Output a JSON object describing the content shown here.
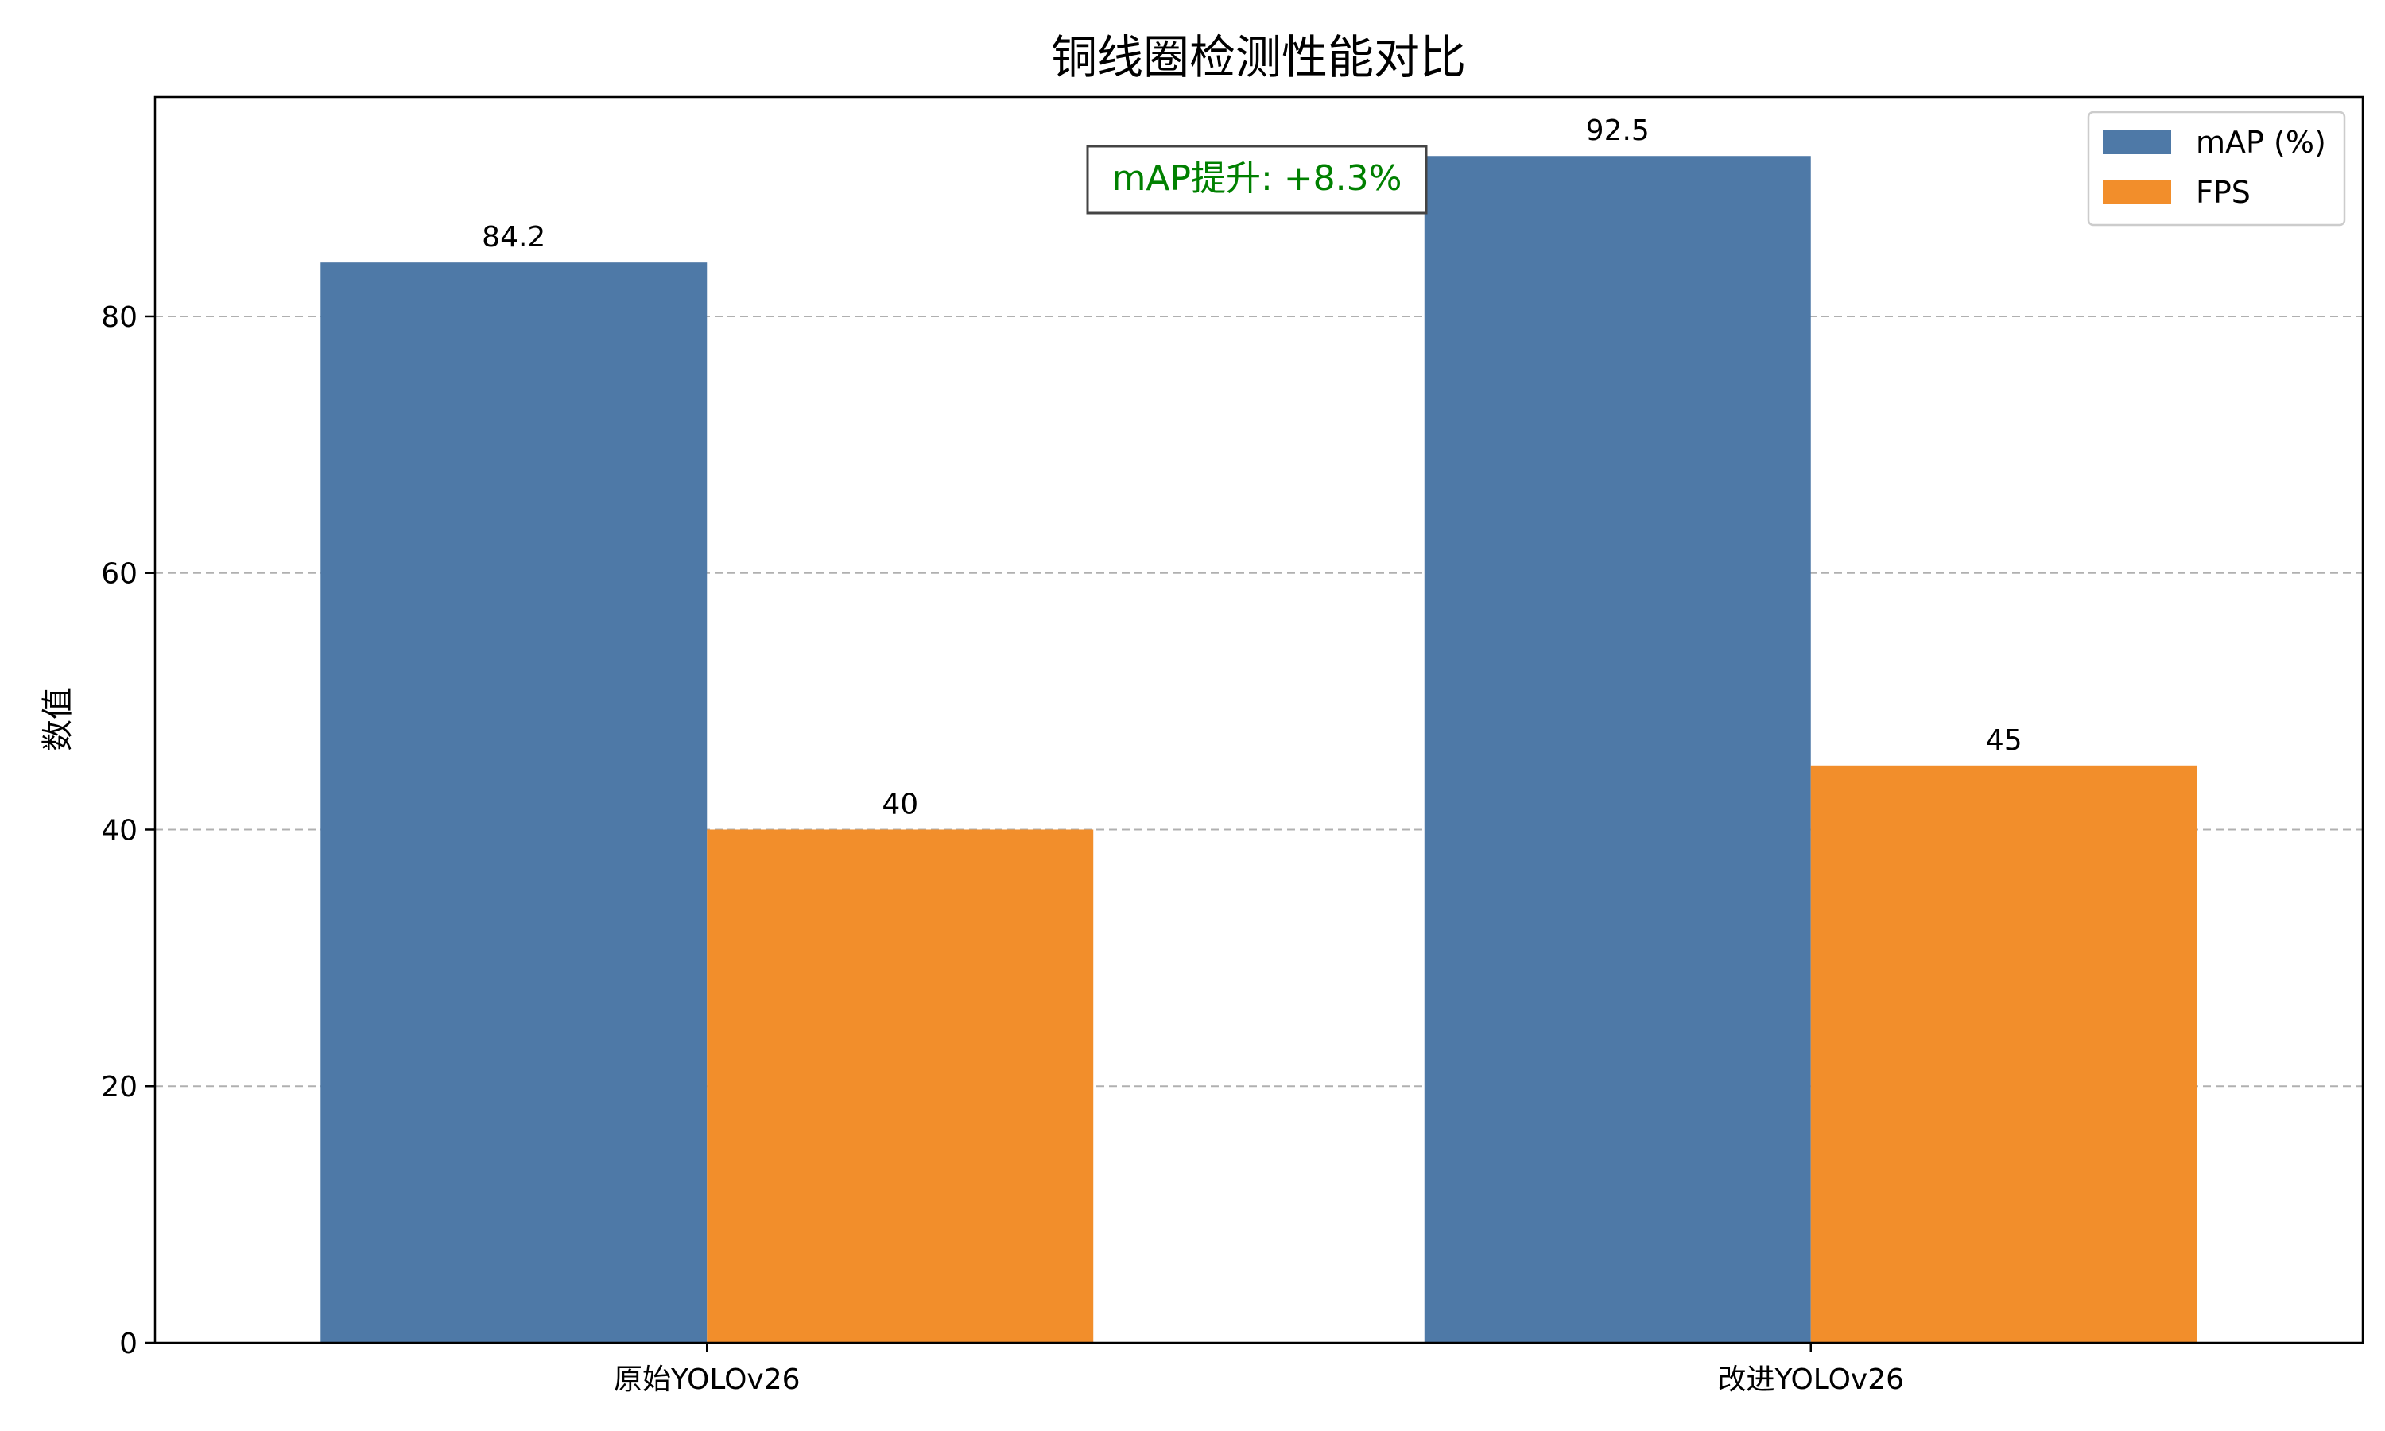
{
  "chart_data": {
    "type": "bar",
    "title": "铜线圈检测性能对比",
    "xlabel": "",
    "ylabel": "数值",
    "categories": [
      "原始YOLOv26",
      "改进YOLOv26"
    ],
    "series": [
      {
        "name": "mAP (%)",
        "values": [
          84.2,
          92.5
        ],
        "color": "#4e79a7"
      },
      {
        "name": "FPS",
        "values": [
          40,
          45
        ],
        "color": "#f28e2b"
      }
    ],
    "data_labels": [
      [
        "84.2",
        "92.5"
      ],
      [
        "40",
        "45"
      ]
    ],
    "ylim": [
      0,
      97.1
    ],
    "yticks": [
      0,
      20,
      40,
      60,
      80
    ],
    "grid": "horizontal-dashed",
    "legend": "top-right",
    "annotation": {
      "text": "mAP提升: +8.3%",
      "color": "#008000"
    }
  }
}
